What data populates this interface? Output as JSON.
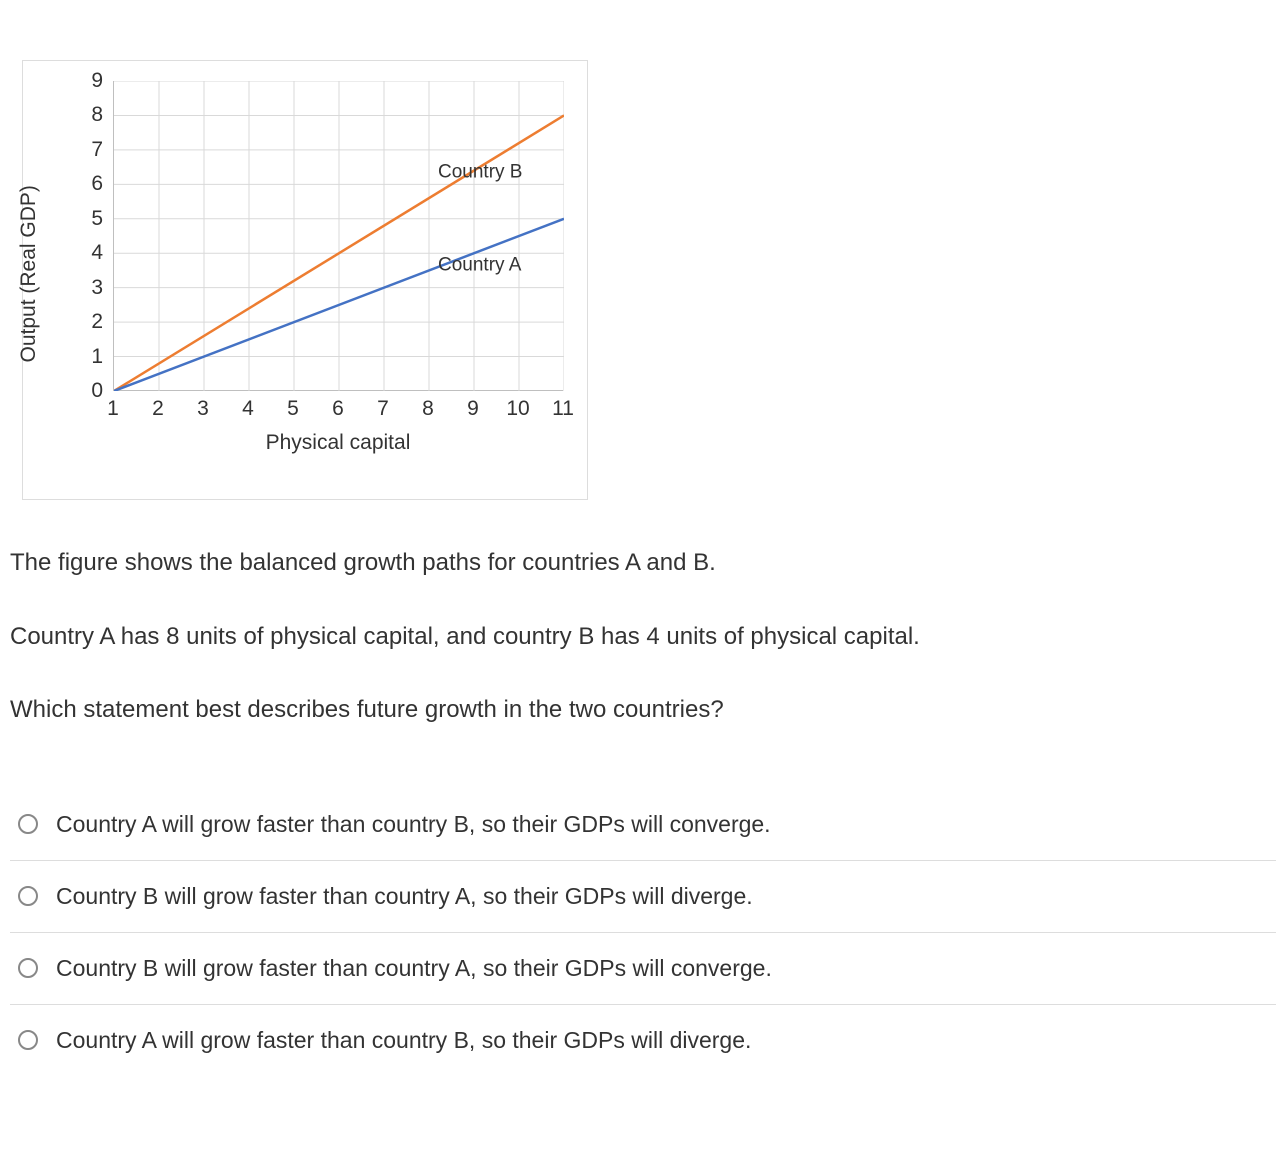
{
  "chart": {
    "ylabel": "Output (Real GDP)",
    "xlabel": "Physical capital",
    "y_ticks": [
      0,
      1,
      2,
      3,
      4,
      5,
      6,
      7,
      8,
      9
    ],
    "x_ticks": [
      1,
      2,
      3,
      4,
      5,
      6,
      7,
      8,
      9,
      10,
      11
    ],
    "ylim": [
      0,
      9
    ],
    "xlim": [
      1,
      11
    ],
    "grid_color": "#d9d9d9",
    "axis_color": "#bfbfbf",
    "background_color": "#ffffff",
    "series": [
      {
        "name": "Country B",
        "color": "#ed7d31",
        "label_xy": [
          8.2,
          6.2
        ],
        "points": [
          [
            1,
            0
          ],
          [
            11,
            8
          ]
        ],
        "line_width": 2.5
      },
      {
        "name": "Country A",
        "color": "#4472c4",
        "label_xy": [
          8.2,
          3.5
        ],
        "points": [
          [
            1,
            0
          ],
          [
            11,
            5
          ]
        ],
        "line_width": 2.5
      }
    ]
  },
  "question": {
    "p1": "The figure shows the balanced growth paths for countries A and B.",
    "p2": "Country A has 8 units of physical capital, and country B has 4 units of physical capital.",
    "p3": "Which statement best describes future growth in the two countries?"
  },
  "choices": [
    "Country A will grow faster than country B, so their GDPs will converge.",
    "Country B will grow faster than country A, so their GDPs will diverge.",
    "Country B will grow faster than country A, so their GDPs will converge.",
    "Country A will grow faster than country B, so their GDPs will diverge."
  ]
}
